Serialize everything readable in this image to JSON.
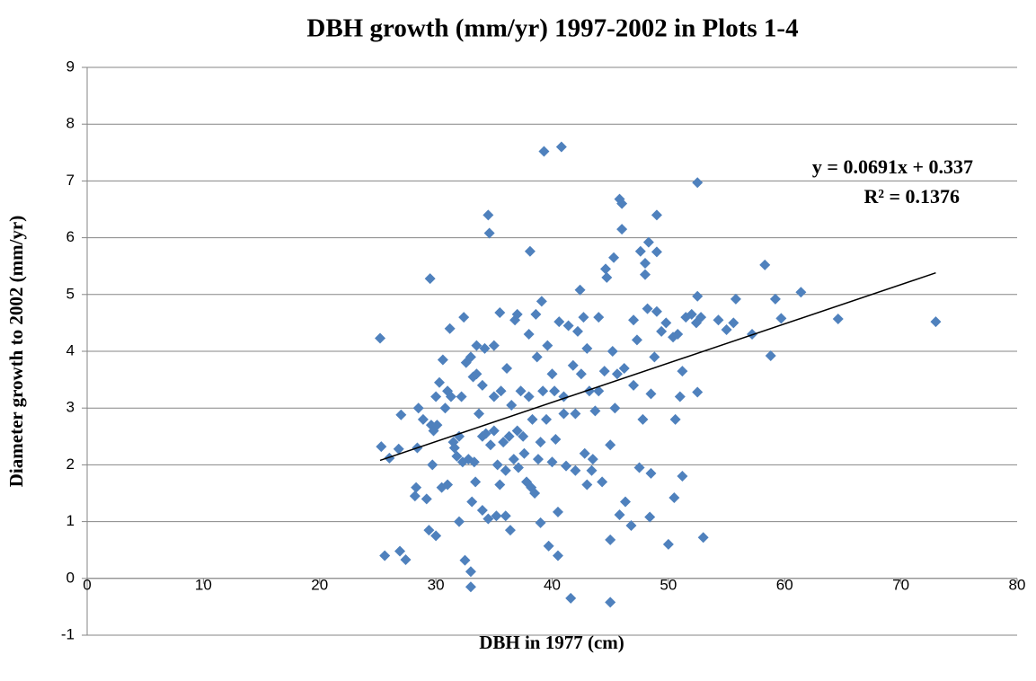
{
  "chart_data": {
    "type": "scatter",
    "title": "DBH growth (mm/yr) 1997-2002 in Plots 1-4",
    "x_label": "DBH in 1977 (cm)",
    "y_label": "Diameter growth to 2002 (mm/yr)",
    "annotations": [
      "y = 0.0691x + 0.337",
      "R² = 0.1376"
    ],
    "xlim": [
      0,
      80
    ],
    "ylim": [
      -1,
      9
    ],
    "xticks": [
      0,
      10,
      20,
      30,
      40,
      50,
      60,
      70,
      80
    ],
    "yticks": [
      -1,
      0,
      1,
      2,
      3,
      4,
      5,
      6,
      7,
      8,
      9
    ],
    "grid": true,
    "color": "#4f81bd",
    "x": [
      25.2,
      25.3,
      25.6,
      26,
      26.8,
      26.9,
      27,
      27.4,
      28.2,
      28.3,
      28.4,
      28.5,
      28.9,
      29.2,
      29.4,
      29.5,
      29.6,
      29.7,
      29.8,
      30,
      30,
      30.1,
      30.3,
      30.5,
      30.6,
      30.8,
      31,
      31,
      31.2,
      31.3,
      31.5,
      31.6,
      31.8,
      32,
      32,
      32.2,
      32.3,
      32.4,
      32.5,
      32.6,
      32.8,
      33,
      33,
      33,
      33.1,
      33.2,
      33.3,
      33.4,
      33.5,
      33.5,
      33.7,
      34,
      34,
      34,
      34.2,
      34.3,
      34.5,
      34.5,
      34.6,
      34.7,
      35,
      35,
      35,
      35.2,
      35.3,
      35.5,
      35.5,
      35.6,
      35.8,
      36,
      36,
      36.1,
      36.3,
      36.4,
      36.5,
      36.7,
      36.8,
      37,
      37,
      37.1,
      37.3,
      37.5,
      37.6,
      37.8,
      38,
      38,
      38.1,
      38.2,
      38.3,
      38.5,
      38.6,
      38.7,
      38.8,
      39,
      39,
      39.1,
      39.2,
      39.3,
      39.5,
      39.6,
      39.7,
      40,
      40,
      40.2,
      40.3,
      40.5,
      40.5,
      40.6,
      40.8,
      41,
      41,
      41.2,
      41.4,
      41.6,
      41.8,
      42,
      42,
      42.2,
      42.4,
      42.5,
      42.7,
      42.8,
      43,
      43,
      43.2,
      43.4,
      43.5,
      43.7,
      44,
      44,
      44.3,
      44.5,
      44.6,
      44.7,
      45,
      45,
      45,
      45.2,
      45.3,
      45.4,
      45.6,
      45.8,
      45.8,
      46,
      46,
      46.2,
      46.3,
      46.8,
      47,
      47,
      47.3,
      47.5,
      47.6,
      47.8,
      48,
      48,
      48.2,
      48.3,
      48.4,
      48.5,
      48.5,
      48.8,
      49,
      49,
      49,
      49.4,
      49.8,
      50,
      50.4,
      50.5,
      50.6,
      50.8,
      51,
      51.2,
      51.2,
      51.5,
      52,
      52.4,
      52.5,
      52.5,
      52.5,
      52.8,
      53,
      54.3,
      55,
      55.6,
      55.8,
      57.2,
      58.3,
      58.8,
      59.2,
      59.7,
      61.4,
      64.6,
      73
    ],
    "values": [
      4.23,
      2.32,
      0.4,
      2.12,
      2.28,
      0.48,
      2.88,
      0.33,
      1.45,
      1.6,
      2.3,
      3,
      2.8,
      1.4,
      0.85,
      5.28,
      2.7,
      2,
      2.6,
      0.75,
      3.2,
      2.7,
      3.45,
      1.6,
      3.85,
      3,
      3.3,
      1.65,
      4.4,
      3.2,
      2.4,
      2.3,
      2.15,
      1,
      2.5,
      3.2,
      2.05,
      4.6,
      0.32,
      3.8,
      2.1,
      3.9,
      0.12,
      -0.15,
      1.35,
      3.55,
      2.05,
      1.7,
      4.1,
      3.6,
      2.9,
      1.2,
      3.4,
      2.5,
      4.05,
      2.55,
      1.05,
      6.4,
      6.08,
      2.35,
      4.1,
      3.2,
      2.6,
      1.1,
      2,
      1.65,
      4.68,
      3.3,
      2.4,
      1.1,
      1.9,
      3.7,
      2.5,
      0.85,
      3.05,
      2.1,
      4.55,
      2.6,
      4.65,
      1.95,
      3.3,
      2.5,
      2.2,
      1.7,
      3.2,
      4.3,
      5.76,
      1.6,
      2.8,
      1.5,
      4.65,
      3.9,
      2.1,
      2.4,
      0.98,
      4.88,
      3.3,
      7.52,
      2.8,
      4.1,
      0.57,
      3.6,
      2.05,
      3.3,
      2.45,
      1.17,
      0.4,
      4.52,
      7.6,
      2.9,
      3.2,
      1.98,
      4.45,
      -0.35,
      3.75,
      2.9,
      1.9,
      4.35,
      5.08,
      3.6,
      4.6,
      2.2,
      4.05,
      1.65,
      3.3,
      1.9,
      2.1,
      2.95,
      4.6,
      3.3,
      1.7,
      3.65,
      5.45,
      5.3,
      2.35,
      -0.42,
      0.68,
      4,
      5.65,
      3,
      3.6,
      6.68,
      1.12,
      6.6,
      6.15,
      3.7,
      1.35,
      0.93,
      4.55,
      3.4,
      4.2,
      1.95,
      5.76,
      2.8,
      5.55,
      5.35,
      4.75,
      5.92,
      1.08,
      1.85,
      3.25,
      3.9,
      5.75,
      6.4,
      4.7,
      4.35,
      4.5,
      0.6,
      4.25,
      1.42,
      2.8,
      4.3,
      3.2,
      3.65,
      1.8,
      4.6,
      4.65,
      4.5,
      3.28,
      4.97,
      6.97,
      4.6,
      0.72,
      4.55,
      4.38,
      4.5,
      4.92,
      4.3,
      5.52,
      3.92,
      4.92,
      4.58,
      5.04,
      4.57,
      4.52
    ],
    "trendline": {
      "x": [
        25.2,
        73
      ],
      "values": [
        2.078,
        5.381
      ],
      "color": "#000000"
    }
  }
}
